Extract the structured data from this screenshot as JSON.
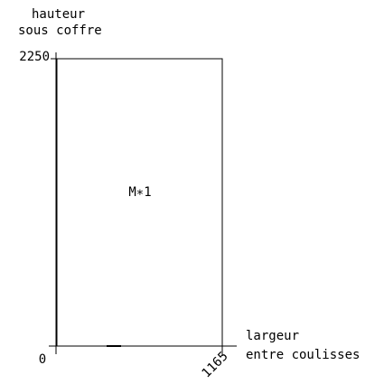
{
  "y_label": [
    "hauteur",
    "sous coffre"
  ],
  "x_label": [
    "largeur",
    "entre coulisses"
  ],
  "height": 2250,
  "origin": 0,
  "width": 1165,
  "panel_label": "M∗1"
}
